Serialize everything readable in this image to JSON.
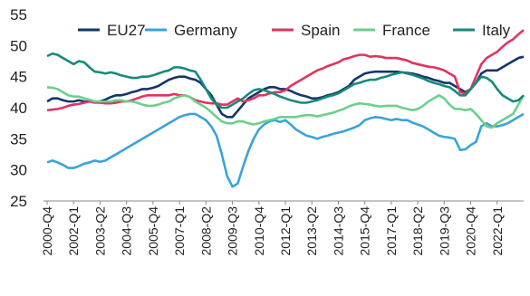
{
  "chart_data": {
    "type": "line",
    "categories": [
      "2000-Q4",
      null,
      null,
      null,
      null,
      "2002-Q1",
      null,
      null,
      null,
      null,
      "2003-Q2",
      null,
      null,
      null,
      null,
      "2004-Q3",
      null,
      null,
      null,
      null,
      "2005-Q4",
      null,
      null,
      null,
      null,
      "2007-Q1",
      null,
      null,
      null,
      null,
      "2008-Q2",
      null,
      null,
      null,
      null,
      "2009-Q3",
      null,
      null,
      null,
      null,
      "2010-Q4",
      null,
      null,
      null,
      null,
      "2012-Q1",
      null,
      null,
      null,
      null,
      "2013-Q2",
      null,
      null,
      null,
      null,
      "2014-Q3",
      null,
      null,
      null,
      null,
      "2015-Q4",
      null,
      null,
      null,
      null,
      "2017-Q1",
      null,
      null,
      null,
      null,
      "2018-Q2",
      null,
      null,
      null,
      null,
      "2019-Q3",
      null,
      null,
      null,
      null,
      "2020-Q4",
      null,
      null,
      null,
      null,
      "2022-Q1",
      null,
      null,
      null,
      null,
      null
    ],
    "series": [
      {
        "name": "EU27",
        "color": "#15356b",
        "values": [
          41,
          41.5,
          41.5,
          41.2,
          41,
          41,
          41.2,
          41,
          41,
          41,
          41,
          41.3,
          41.7,
          42,
          42,
          42.2,
          42.5,
          42.7,
          43,
          43,
          43.2,
          43.5,
          44,
          44.5,
          44.8,
          45,
          45,
          44.7,
          44.5,
          44,
          43,
          42,
          40.5,
          39,
          38.5,
          38.5,
          39.5,
          40.5,
          41.5,
          42,
          42.5,
          43,
          43.3,
          43.3,
          43,
          43,
          42.7,
          42.3,
          42,
          41.8,
          41.5,
          41.5,
          41.7,
          42,
          42.2,
          42.5,
          43,
          43.5,
          44.5,
          45,
          45.5,
          45.7,
          45.8,
          45.8,
          45.8,
          45.8,
          45.8,
          45.7,
          45.6,
          45.5,
          45.3,
          45,
          44.8,
          44.5,
          44.3,
          44,
          44,
          43.5,
          43,
          42.5,
          43,
          44,
          45.5,
          46,
          46,
          46,
          46.5,
          47,
          47.5,
          48,
          48.2
        ]
      },
      {
        "name": "Germany",
        "color": "#3aa3d9",
        "values": [
          31.2,
          31.5,
          31.2,
          30.8,
          30.3,
          30.3,
          30.6,
          31,
          31.2,
          31.5,
          31.3,
          31.5,
          32,
          32.5,
          33,
          33.5,
          34,
          34.5,
          35,
          35.5,
          36,
          36.5,
          37,
          37.5,
          38,
          38.5,
          38.8,
          39,
          39,
          38.5,
          38,
          37,
          35.5,
          32.5,
          29,
          27.3,
          27.8,
          30.5,
          33,
          35,
          36.5,
          37.3,
          37.8,
          38,
          37.7,
          38,
          37.3,
          36.5,
          36,
          35.5,
          35.3,
          35,
          35.3,
          35.5,
          35.8,
          36,
          36.2,
          36.5,
          36.8,
          37.2,
          38,
          38.3,
          38.5,
          38.4,
          38.2,
          38,
          38.2,
          38,
          38,
          37.6,
          37.3,
          37,
          36.5,
          36,
          35.5,
          35.3,
          35.2,
          35,
          33.2,
          33.3,
          34,
          34.5,
          37,
          37.5,
          37,
          37,
          37.2,
          37.5,
          38,
          38.5,
          39
        ]
      },
      {
        "name": "Spain",
        "color": "#e2335f",
        "values": [
          39.6,
          39.7,
          39.8,
          40,
          40.3,
          40.5,
          40.6,
          40.8,
          41,
          40.8,
          40.8,
          40.7,
          40.7,
          40.8,
          41,
          41,
          41.2,
          41.5,
          41.8,
          42,
          42,
          42,
          42,
          42,
          42.2,
          42,
          42,
          41.7,
          41.2,
          41,
          40.8,
          40.7,
          40.7,
          40.5,
          40.5,
          41,
          41.5,
          41,
          41.2,
          41.5,
          42,
          42,
          42.3,
          42.5,
          42.5,
          42.8,
          43.5,
          44,
          44.5,
          45,
          45.5,
          46,
          46.3,
          46.7,
          47,
          47.3,
          47.8,
          48,
          48.3,
          48.5,
          48.5,
          48.2,
          48.3,
          48.2,
          48,
          48,
          48,
          47.8,
          47.6,
          47.2,
          47,
          46.8,
          46.6,
          46.5,
          46.3,
          46,
          45.5,
          45,
          42.5,
          42.3,
          43,
          45,
          47,
          48,
          48.5,
          49,
          49.8,
          50.5,
          51,
          51.8,
          52.5
        ]
      },
      {
        "name": "France",
        "color": "#6ccf8b",
        "values": [
          43.3,
          43.2,
          43,
          42.5,
          42,
          41.8,
          41.8,
          41.5,
          41.3,
          41,
          41,
          41,
          41,
          41.2,
          41.2,
          41,
          41,
          40.8,
          40.5,
          40.3,
          40.3,
          40.5,
          40.8,
          41,
          41.5,
          41.8,
          42,
          41.7,
          41,
          40.5,
          40,
          39.3,
          38.5,
          37.8,
          37.5,
          37.5,
          37.8,
          37.8,
          37.5,
          37.3,
          37.5,
          37.8,
          38,
          38.2,
          38.5,
          38.5,
          38.5,
          38.5,
          38.7,
          38.8,
          38.8,
          38.6,
          38.8,
          39,
          39.2,
          39.5,
          39.8,
          40.2,
          40.5,
          40.7,
          40.6,
          40.5,
          40.3,
          40.2,
          40.3,
          40.3,
          40.3,
          40,
          39.8,
          39.6,
          39.8,
          40.3,
          41,
          41.5,
          42,
          41.5,
          40.5,
          39.8,
          39.8,
          39.6,
          39.8,
          39,
          38,
          37,
          36.8,
          37.5,
          38,
          38.5,
          39,
          40.5,
          42
        ]
      },
      {
        "name": "Italy",
        "color": "#168a7b",
        "values": [
          48.3,
          48.7,
          48.5,
          48,
          47.5,
          47,
          47.5,
          47.3,
          46.5,
          45.8,
          45.7,
          45.5,
          45.7,
          45.5,
          45.2,
          45,
          44.8,
          44.8,
          45,
          45,
          45.2,
          45.5,
          45.8,
          46,
          46.5,
          46.5,
          46.3,
          46,
          45.8,
          44.5,
          43,
          41.5,
          40.5,
          40,
          40,
          40.5,
          41,
          41.5,
          42.2,
          42.8,
          43,
          42.8,
          42.5,
          42.2,
          41.8,
          41.5,
          41.2,
          41,
          40.8,
          40.8,
          41,
          41.2,
          41.5,
          41.8,
          42,
          42.3,
          42.8,
          43.3,
          43.8,
          44,
          44.3,
          44.5,
          44.5,
          44.8,
          45,
          45.3,
          45.5,
          45.7,
          45.5,
          45.3,
          45,
          44.7,
          44.3,
          44,
          43.8,
          43.5,
          43.3,
          42.7,
          42,
          42,
          43,
          44,
          45,
          44.8,
          44.2,
          43,
          42,
          41.5,
          41,
          41.2,
          42
        ]
      }
    ],
    "ylim": [
      25,
      55
    ],
    "yticks": [
      25,
      30,
      35,
      40,
      45,
      50,
      55
    ],
    "grid": false,
    "legend": "top"
  }
}
